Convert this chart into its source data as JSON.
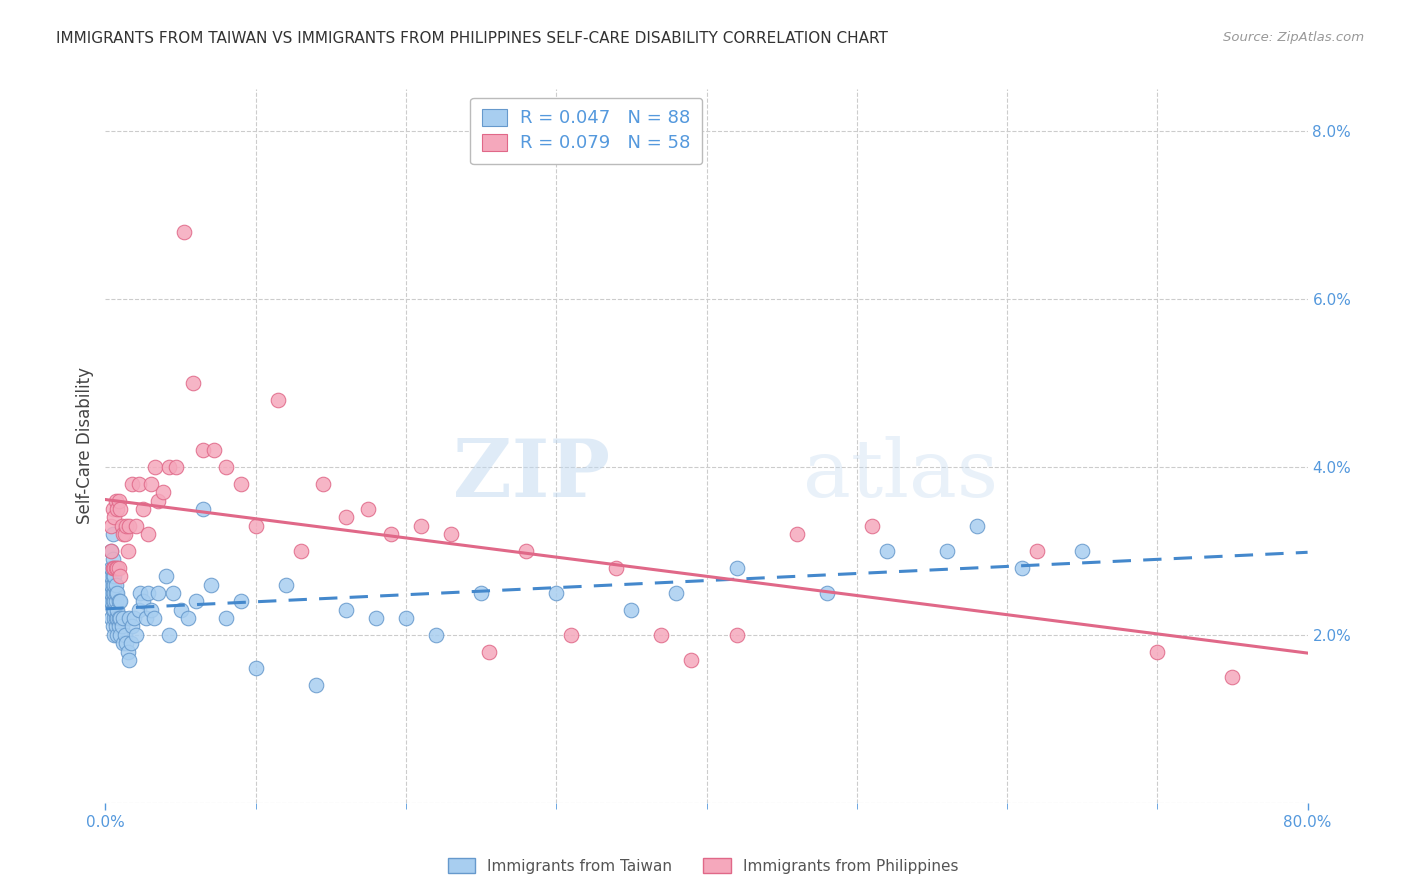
{
  "title": "IMMIGRANTS FROM TAIWAN VS IMMIGRANTS FROM PHILIPPINES SELF-CARE DISABILITY CORRELATION CHART",
  "source": "Source: ZipAtlas.com",
  "ylabel": "Self-Care Disability",
  "xlim": [
    0.0,
    0.8
  ],
  "ylim": [
    0.0,
    0.085
  ],
  "xticks": [
    0.0,
    0.8
  ],
  "xticklabels": [
    "0.0%",
    "80.0%"
  ],
  "yticks_right": [
    0.0,
    0.02,
    0.04,
    0.06,
    0.08
  ],
  "yticklabels_right": [
    "",
    "2.0%",
    "4.0%",
    "6.0%",
    "8.0%"
  ],
  "taiwan_color": "#a8cef0",
  "taiwan_edge_color": "#6699cc",
  "philippines_color": "#f5a8bc",
  "philippines_edge_color": "#e06888",
  "taiwan_line_color": "#4488cc",
  "philippines_line_color": "#e06888",
  "taiwan_R": 0.047,
  "taiwan_N": 88,
  "philippines_R": 0.079,
  "philippines_N": 58,
  "grid_color": "#cccccc",
  "background_color": "#ffffff",
  "title_color": "#333333",
  "axis_color": "#5599dd",
  "watermark_zip": "ZIP",
  "watermark_atlas": "atlas",
  "taiwan_x": [
    0.003,
    0.003,
    0.004,
    0.004,
    0.004,
    0.004,
    0.004,
    0.004,
    0.004,
    0.005,
    0.005,
    0.005,
    0.005,
    0.005,
    0.005,
    0.005,
    0.005,
    0.005,
    0.006,
    0.006,
    0.006,
    0.006,
    0.006,
    0.006,
    0.006,
    0.007,
    0.007,
    0.007,
    0.007,
    0.007,
    0.008,
    0.008,
    0.008,
    0.008,
    0.009,
    0.009,
    0.009,
    0.01,
    0.01,
    0.01,
    0.011,
    0.012,
    0.012,
    0.013,
    0.014,
    0.015,
    0.016,
    0.016,
    0.017,
    0.018,
    0.019,
    0.02,
    0.022,
    0.023,
    0.025,
    0.027,
    0.028,
    0.03,
    0.032,
    0.035,
    0.04,
    0.042,
    0.045,
    0.05,
    0.055,
    0.06,
    0.065,
    0.07,
    0.08,
    0.09,
    0.1,
    0.12,
    0.14,
    0.16,
    0.18,
    0.2,
    0.22,
    0.25,
    0.3,
    0.35,
    0.38,
    0.42,
    0.48,
    0.52,
    0.56,
    0.58,
    0.61,
    0.65
  ],
  "taiwan_y": [
    0.024,
    0.025,
    0.022,
    0.024,
    0.025,
    0.026,
    0.027,
    0.028,
    0.03,
    0.021,
    0.023,
    0.024,
    0.025,
    0.026,
    0.027,
    0.028,
    0.029,
    0.032,
    0.02,
    0.022,
    0.023,
    0.024,
    0.025,
    0.026,
    0.027,
    0.021,
    0.022,
    0.024,
    0.025,
    0.026,
    0.02,
    0.022,
    0.023,
    0.025,
    0.021,
    0.022,
    0.024,
    0.02,
    0.022,
    0.024,
    0.021,
    0.019,
    0.022,
    0.02,
    0.019,
    0.018,
    0.017,
    0.022,
    0.019,
    0.021,
    0.022,
    0.02,
    0.023,
    0.025,
    0.024,
    0.022,
    0.025,
    0.023,
    0.022,
    0.025,
    0.027,
    0.02,
    0.025,
    0.023,
    0.022,
    0.024,
    0.035,
    0.026,
    0.022,
    0.024,
    0.016,
    0.026,
    0.014,
    0.023,
    0.022,
    0.022,
    0.02,
    0.025,
    0.025,
    0.023,
    0.025,
    0.028,
    0.025,
    0.03,
    0.03,
    0.033,
    0.028,
    0.03
  ],
  "philippines_x": [
    0.004,
    0.004,
    0.005,
    0.005,
    0.006,
    0.006,
    0.007,
    0.007,
    0.008,
    0.008,
    0.009,
    0.009,
    0.01,
    0.01,
    0.011,
    0.012,
    0.013,
    0.014,
    0.015,
    0.016,
    0.018,
    0.02,
    0.022,
    0.025,
    0.028,
    0.03,
    0.033,
    0.035,
    0.038,
    0.042,
    0.047,
    0.052,
    0.058,
    0.065,
    0.072,
    0.08,
    0.09,
    0.1,
    0.115,
    0.13,
    0.145,
    0.16,
    0.175,
    0.19,
    0.21,
    0.23,
    0.255,
    0.28,
    0.31,
    0.34,
    0.37,
    0.39,
    0.42,
    0.46,
    0.51,
    0.62,
    0.7,
    0.75
  ],
  "philippines_y": [
    0.03,
    0.033,
    0.028,
    0.035,
    0.028,
    0.034,
    0.028,
    0.036,
    0.028,
    0.035,
    0.028,
    0.036,
    0.027,
    0.035,
    0.033,
    0.032,
    0.032,
    0.033,
    0.03,
    0.033,
    0.038,
    0.033,
    0.038,
    0.035,
    0.032,
    0.038,
    0.04,
    0.036,
    0.037,
    0.04,
    0.04,
    0.068,
    0.05,
    0.042,
    0.042,
    0.04,
    0.038,
    0.033,
    0.048,
    0.03,
    0.038,
    0.034,
    0.035,
    0.032,
    0.033,
    0.032,
    0.018,
    0.03,
    0.02,
    0.028,
    0.02,
    0.017,
    0.02,
    0.032,
    0.033,
    0.03,
    0.018,
    0.015
  ]
}
